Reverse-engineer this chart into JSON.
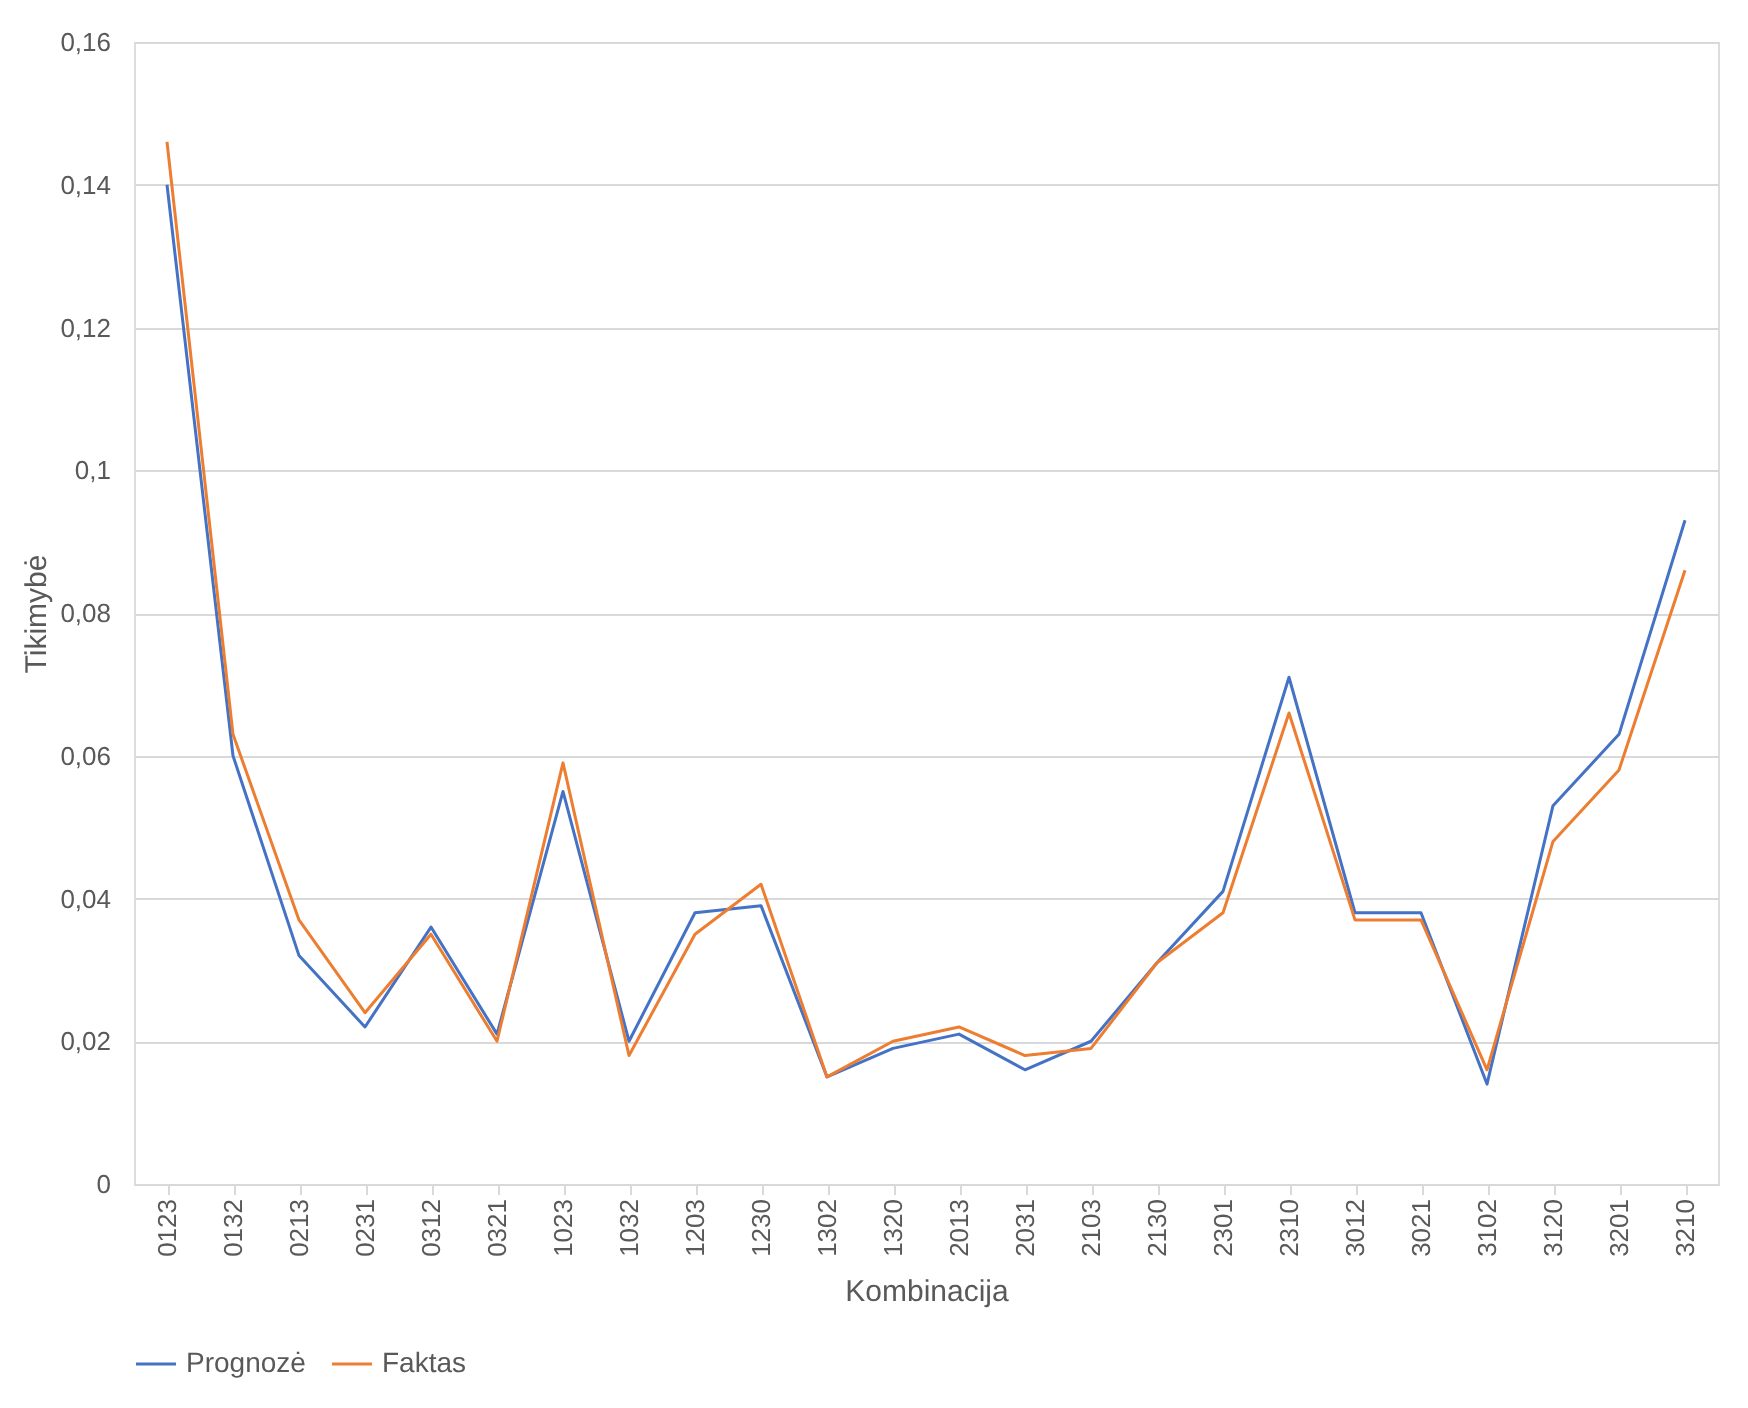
{
  "chart_data": {
    "type": "line",
    "xlabel": "Kombinacija",
    "ylabel": "Tikimybė",
    "categories": [
      "0123",
      "0132",
      "0213",
      "0231",
      "0312",
      "0321",
      "1023",
      "1032",
      "1203",
      "1230",
      "1302",
      "1320",
      "2013",
      "2031",
      "2103",
      "2130",
      "2301",
      "2310",
      "3012",
      "3021",
      "3102",
      "3120",
      "3201",
      "3210"
    ],
    "series": [
      {
        "name": "Prognozė",
        "color": "#4472c4",
        "values": [
          0.14,
          0.06,
          0.032,
          0.022,
          0.036,
          0.021,
          0.055,
          0.02,
          0.038,
          0.039,
          0.015,
          0.019,
          0.021,
          0.016,
          0.02,
          0.031,
          0.041,
          0.071,
          0.038,
          0.038,
          0.014,
          0.053,
          0.063,
          0.093
        ]
      },
      {
        "name": "Faktas",
        "color": "#ed7d31",
        "values": [
          0.146,
          0.063,
          0.037,
          0.024,
          0.035,
          0.02,
          0.059,
          0.018,
          0.035,
          0.042,
          0.015,
          0.02,
          0.022,
          0.018,
          0.019,
          0.031,
          0.038,
          0.066,
          0.037,
          0.037,
          0.016,
          0.048,
          0.058,
          0.086
        ]
      }
    ],
    "ylim": [
      0,
      0.16
    ],
    "yticks": [
      0,
      {
        "value": 0.02,
        "label": "0,02"
      },
      {
        "value": 0.04,
        "label": "0,04"
      },
      {
        "value": 0.06,
        "label": "0,06"
      },
      {
        "value": 0.08,
        "label": "0,08"
      },
      {
        "value": 0.1,
        "label": "0,1"
      },
      {
        "value": 0.12,
        "label": "0,12"
      },
      {
        "value": 0.14,
        "label": "0,14"
      },
      {
        "value": 0.16,
        "label": "0,16"
      }
    ],
    "grid": "y",
    "legend": "bottom",
    "marker": "none",
    "line_style": "solid"
  }
}
